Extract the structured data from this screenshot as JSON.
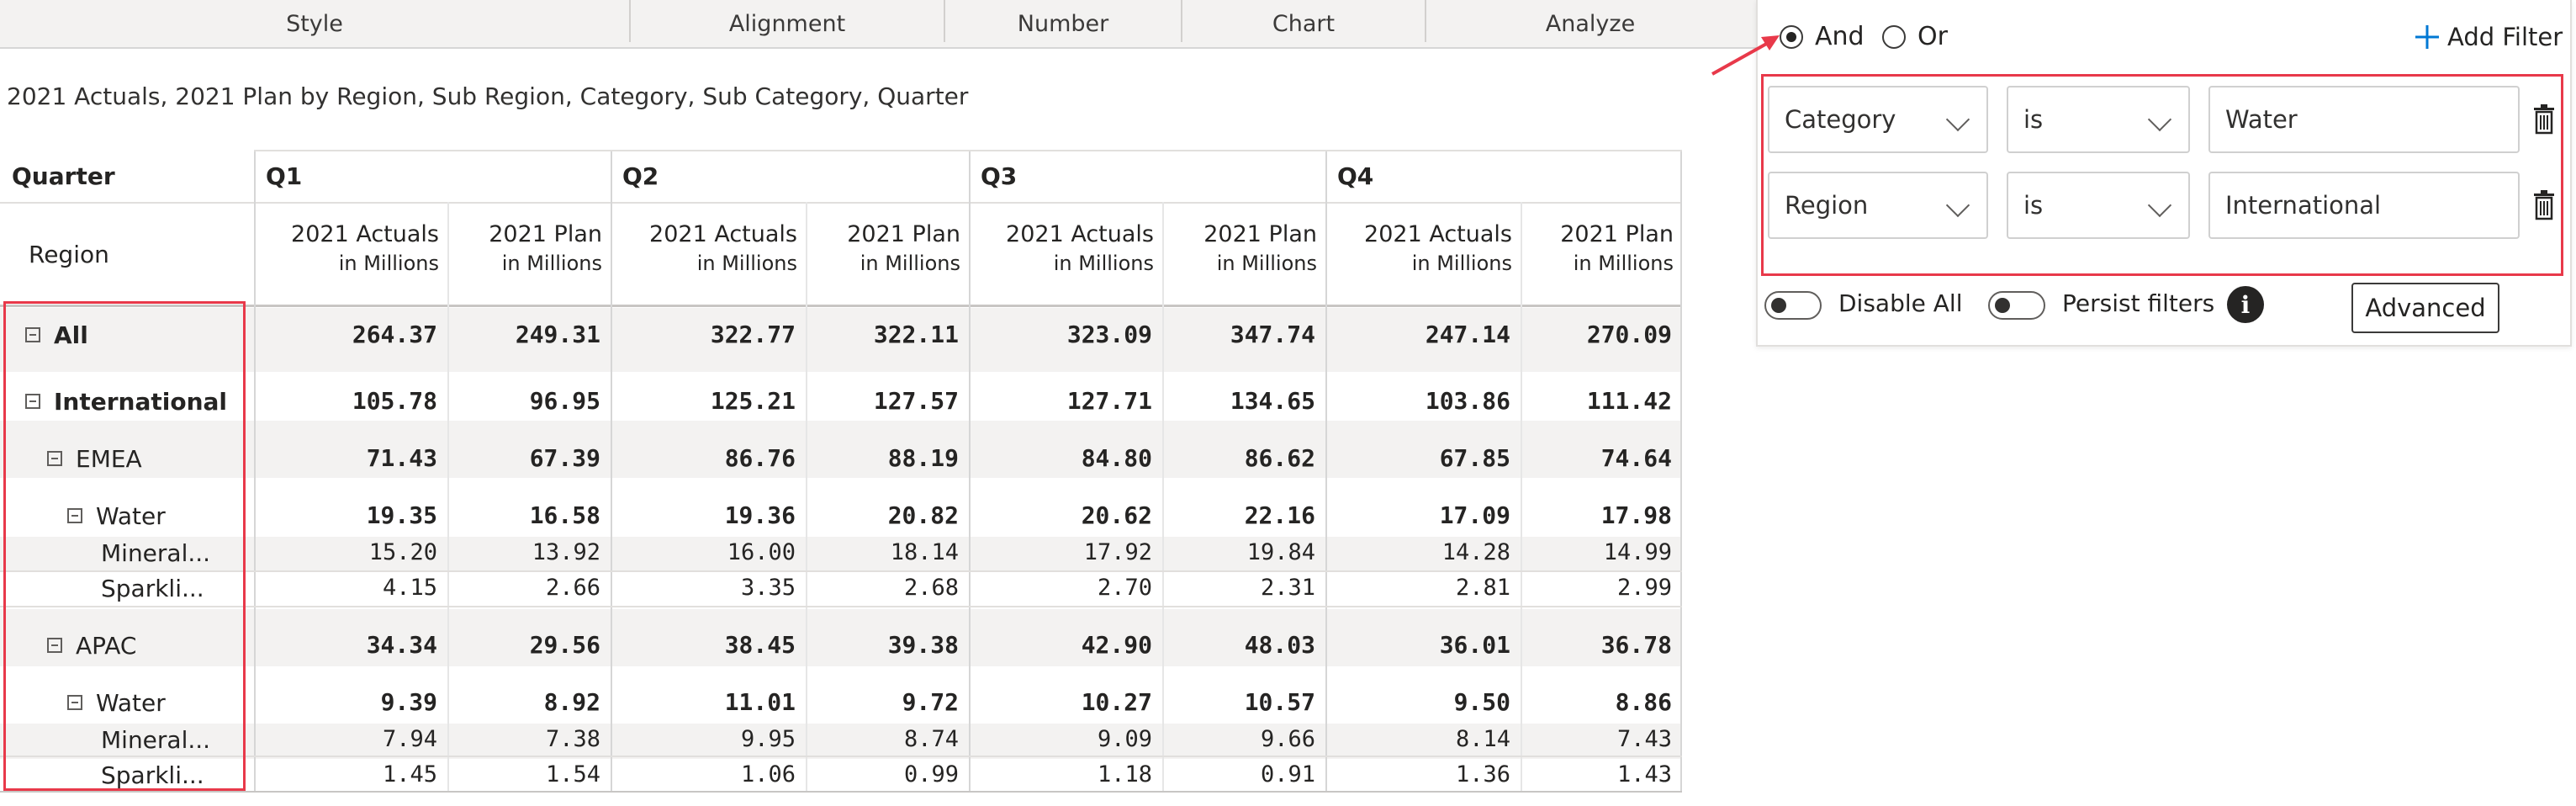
{
  "ribbon": {
    "tabs": [
      "Style",
      "Alignment",
      "Number",
      "Chart",
      "Analyze"
    ]
  },
  "subtitle": "2021 Actuals, 2021 Plan by Region, Sub Region, Category, Sub Category, Quarter",
  "table": {
    "corner_label": "Quarter",
    "row_header_label": "Region",
    "quarters": [
      "Q1",
      "Q2",
      "Q3",
      "Q4"
    ],
    "measures": [
      {
        "name": "2021 Actuals",
        "unit": "in Millions"
      },
      {
        "name": "2021 Plan",
        "unit": "in Millions"
      }
    ],
    "rows": [
      {
        "label": "All",
        "bold": true,
        "toggle": true,
        "values": [
          "264.37",
          "249.31",
          "322.77",
          "322.11",
          "323.09",
          "347.74",
          "247.14",
          "270.09"
        ]
      },
      {
        "label": "International",
        "bold": true,
        "toggle": true,
        "values": [
          "105.78",
          "96.95",
          "125.21",
          "127.57",
          "127.71",
          "134.65",
          "103.86",
          "111.42"
        ]
      },
      {
        "label": "EMEA",
        "bold": false,
        "toggle": true,
        "values": [
          "71.43",
          "67.39",
          "86.76",
          "88.19",
          "84.80",
          "86.62",
          "67.85",
          "74.64"
        ]
      },
      {
        "label": "Water",
        "bold": false,
        "toggle": true,
        "values": [
          "19.35",
          "16.58",
          "19.36",
          "20.82",
          "20.62",
          "22.16",
          "17.09",
          "17.98"
        ]
      },
      {
        "label": "Mineral...",
        "bold": false,
        "toggle": false,
        "values": [
          "15.20",
          "13.92",
          "16.00",
          "18.14",
          "17.92",
          "19.84",
          "14.28",
          "14.99"
        ]
      },
      {
        "label": "Sparkli...",
        "bold": false,
        "toggle": false,
        "values": [
          "4.15",
          "2.66",
          "3.35",
          "2.68",
          "2.70",
          "2.31",
          "2.81",
          "2.99"
        ]
      },
      {
        "label": "APAC",
        "bold": false,
        "toggle": true,
        "values": [
          "34.34",
          "29.56",
          "38.45",
          "39.38",
          "42.90",
          "48.03",
          "36.01",
          "36.78"
        ]
      },
      {
        "label": "Water",
        "bold": false,
        "toggle": true,
        "values": [
          "9.39",
          "8.92",
          "11.01",
          "9.72",
          "10.27",
          "10.57",
          "9.50",
          "8.86"
        ]
      },
      {
        "label": "Mineral...",
        "bold": false,
        "toggle": false,
        "values": [
          "7.94",
          "7.38",
          "9.95",
          "8.74",
          "9.09",
          "9.66",
          "8.14",
          "7.43"
        ]
      },
      {
        "label": "Sparkli...",
        "bold": false,
        "toggle": false,
        "values": [
          "1.45",
          "1.54",
          "1.06",
          "0.99",
          "1.18",
          "0.91",
          "1.36",
          "1.43"
        ]
      }
    ]
  },
  "filter_panel": {
    "and_label": "And",
    "or_label": "Or",
    "logic_selected": "And",
    "add_filter_label": "Add Filter",
    "filters": [
      {
        "field": "Category",
        "operator": "is",
        "value": "Water"
      },
      {
        "field": "Region",
        "operator": "is",
        "value": "International"
      }
    ],
    "disable_all_label": "Disable All",
    "persist_filters_label": "Persist filters",
    "info_glyph": "i",
    "advanced_label": "Advanced"
  },
  "colors": {
    "highlight": "#e8394a",
    "accent": "#0078d4"
  }
}
